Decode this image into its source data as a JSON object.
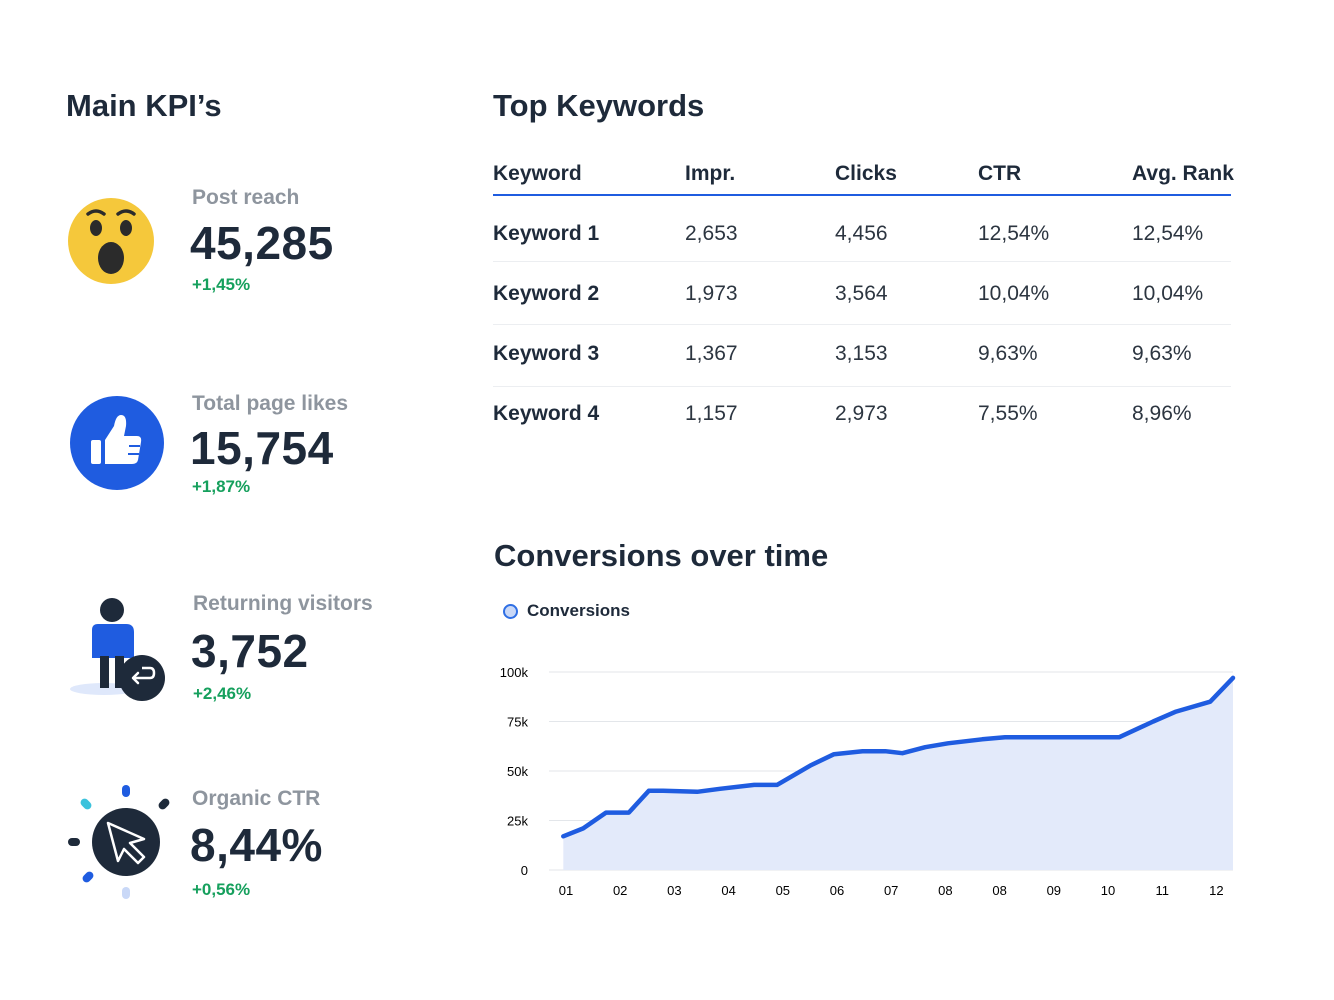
{
  "kpi_section": {
    "title": "Main KPI’s",
    "items": [
      {
        "label": "Post reach",
        "value": "45,285",
        "change": "+1,45%",
        "icon": "wow-emoji-icon"
      },
      {
        "label": "Total page likes",
        "value": "15,754",
        "change": "+1,87%",
        "icon": "thumbs-up-icon"
      },
      {
        "label": "Returning visitors",
        "value": "3,752",
        "change": "+2,46%",
        "icon": "returning-visitor-icon"
      },
      {
        "label": "Organic CTR",
        "value": "8,44%",
        "change": "+0,56%",
        "icon": "cursor-click-icon"
      }
    ]
  },
  "keywords": {
    "title": "Top Keywords",
    "columns": [
      "Keyword",
      "Impr.",
      "Clicks",
      "CTR",
      "Avg. Rank"
    ],
    "rows": [
      [
        "Keyword 1",
        "2,653",
        "4,456",
        "12,54%",
        "12,54%"
      ],
      [
        "Keyword 2",
        "1,973",
        "3,564",
        "10,04%",
        "10,04%"
      ],
      [
        "Keyword 3",
        "1,367",
        "3,153",
        "9,63%",
        "9,63%"
      ],
      [
        "Keyword 4",
        "1,157",
        "2,973",
        "7,55%",
        "8,96%"
      ]
    ]
  },
  "conversions": {
    "title": "Conversions over time"
  },
  "colors": {
    "accent": "#1f5ce0",
    "positive": "#16a05d",
    "text": "#1e2a3a",
    "muted": "#8e959e",
    "area_fill": "#e3eafa"
  },
  "chart_data": {
    "type": "area",
    "categories": [
      "01",
      "02",
      "03",
      "04",
      "05",
      "06",
      "07",
      "08",
      "08",
      "09",
      "10",
      "11",
      "12"
    ],
    "series": [
      {
        "name": "Conversions",
        "x": [
          0.25,
          0.6,
          1.0,
          1.4,
          1.75,
          2.0,
          2.6,
          3.0,
          3.6,
          4.0,
          4.6,
          5.0,
          5.5,
          5.9,
          6.2,
          6.6,
          7.0,
          7.6,
          8.0,
          8.6,
          9.0,
          9.6,
          10.0,
          10.6,
          11.0,
          11.6,
          12.0
        ],
        "y": [
          17,
          21,
          29,
          29,
          40,
          40,
          39.5,
          41,
          43,
          43,
          53,
          58.5,
          60,
          60,
          59,
          62,
          64,
          66,
          67,
          67,
          67,
          67,
          67,
          75,
          80,
          85,
          97
        ]
      }
    ],
    "categories_x": [
      1,
      2,
      3,
      4,
      5,
      6,
      7,
      8,
      9,
      10,
      11,
      12,
      13
    ],
    "ylim": [
      0,
      100
    ],
    "yticks": [
      0,
      25,
      50,
      75,
      100
    ],
    "ytick_labels": [
      "0",
      "25k",
      "50k",
      "75k",
      "100k"
    ],
    "grid": true,
    "legend": "top-left",
    "xlabel": "",
    "ylabel": ""
  }
}
